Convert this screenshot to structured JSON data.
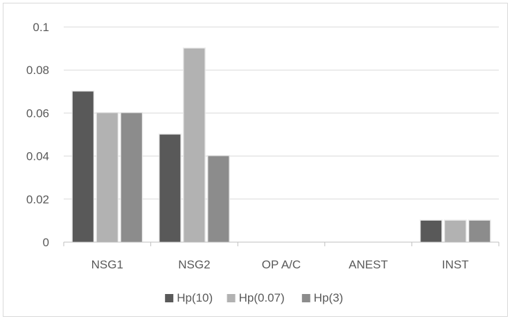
{
  "chart_data": {
    "type": "bar",
    "categories": [
      "NSG1",
      "NSG2",
      "OP A/C",
      "ANEST",
      "INST"
    ],
    "series": [
      {
        "name": "Hp(10)",
        "values": [
          0.07,
          0.05,
          0,
          0,
          0.01
        ],
        "color": "#595959"
      },
      {
        "name": "Hp(0.07)",
        "values": [
          0.06,
          0.09,
          0,
          0,
          0.01
        ],
        "color": "#b2b2b2"
      },
      {
        "name": "Hp(3)",
        "values": [
          0.06,
          0.04,
          0,
          0,
          0.01
        ],
        "color": "#8c8c8c"
      }
    ],
    "y_ticks": [
      "0",
      "0.02",
      "0.04",
      "0.06",
      "0.08",
      "0.1"
    ],
    "ylim": [
      0,
      0.1
    ],
    "grid": true,
    "legend_position": "bottom",
    "title": "",
    "xlabel": "",
    "ylabel": ""
  }
}
